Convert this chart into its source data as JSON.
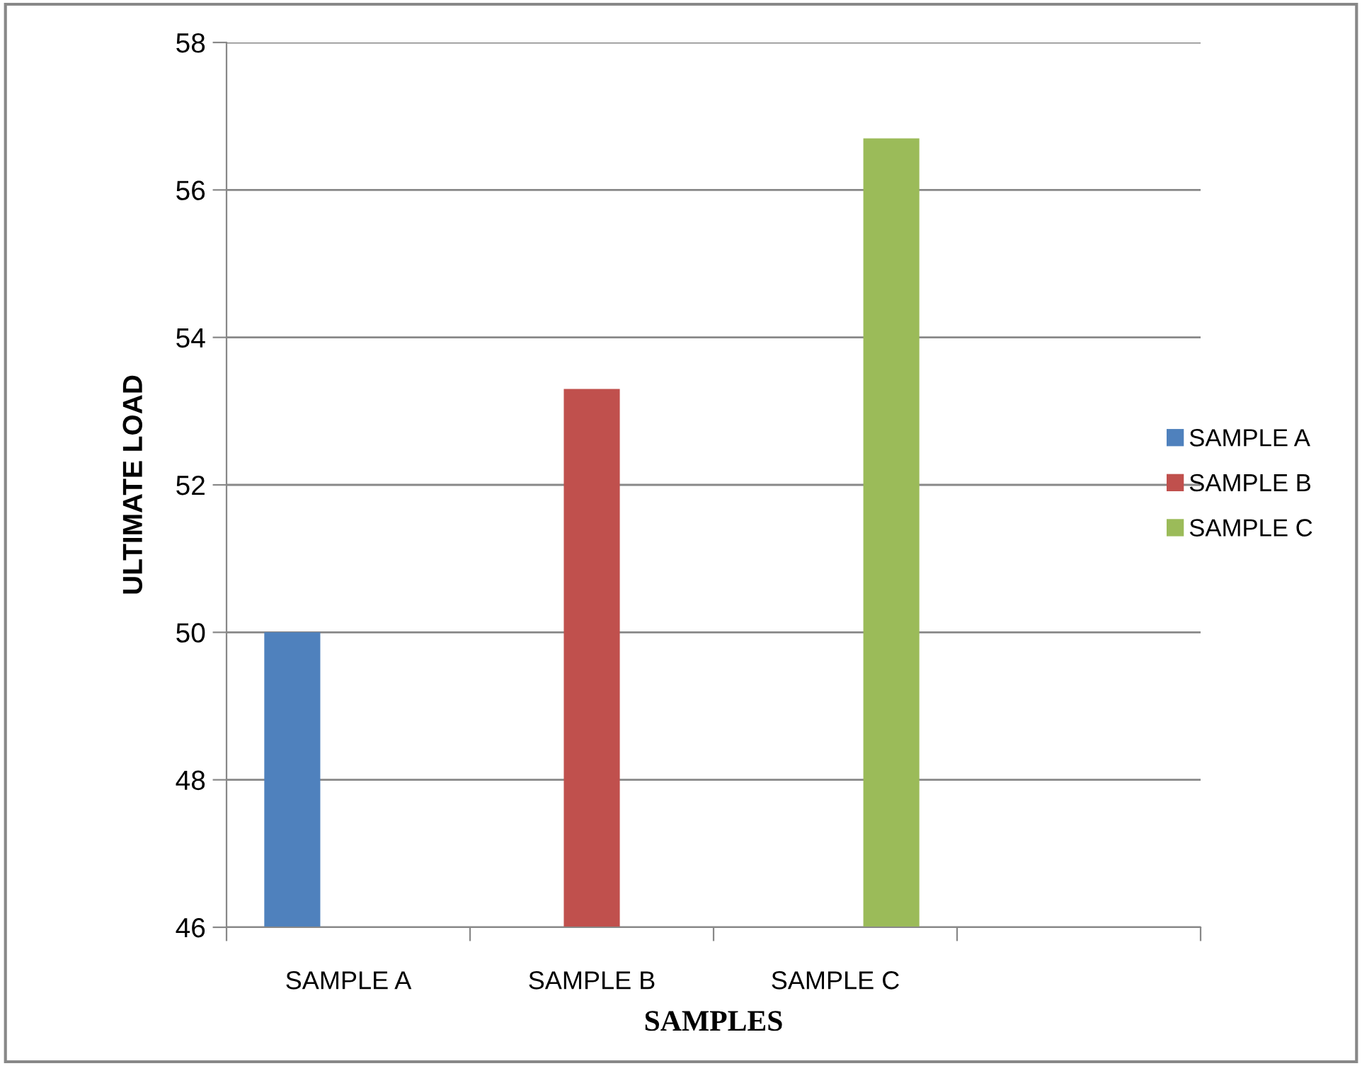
{
  "chart_data": {
    "type": "bar",
    "xlabel": "SAMPLES",
    "ylabel": "ULTIMATE LOAD",
    "categories": [
      "SAMPLE A",
      "SAMPLE B",
      "SAMPLE C",
      null
    ],
    "series": [
      {
        "name": "SAMPLE A",
        "color": "#4f81bd",
        "values": [
          50,
          null,
          null,
          null
        ]
      },
      {
        "name": "SAMPLE B",
        "color": "#c0504d",
        "values": [
          null,
          53.3,
          null,
          null
        ]
      },
      {
        "name": "SAMPLE C",
        "color": "#9bbb59",
        "values": [
          null,
          null,
          56.7,
          null
        ]
      }
    ],
    "ylim": [
      46,
      58
    ],
    "yticks": [
      46,
      48,
      50,
      52,
      54,
      56,
      58
    ],
    "grid": "y",
    "legend": "right"
  }
}
